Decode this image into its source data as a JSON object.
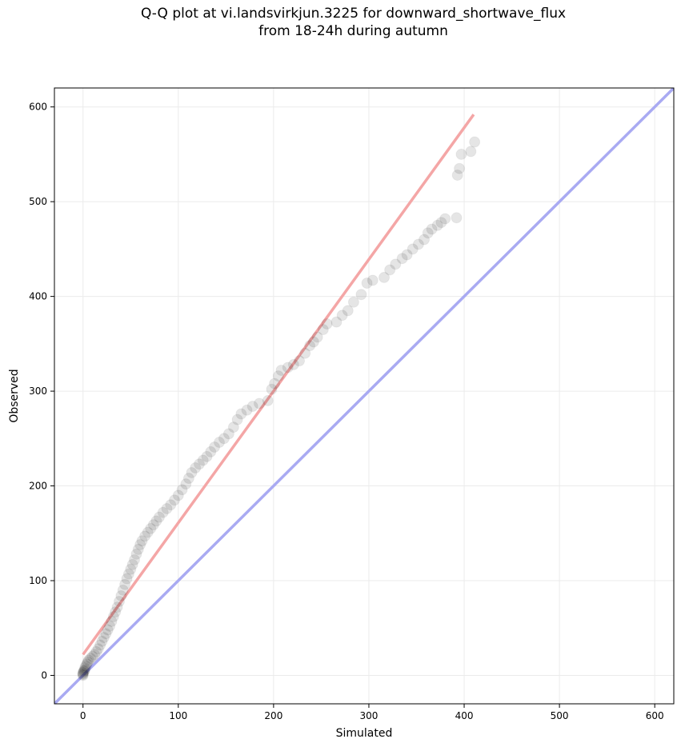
{
  "chart_data": {
    "type": "scatter",
    "title_line1": "Q-Q plot at vi.landsvirkjun.3225 for downward_shortwave_flux",
    "title_line2": "from 18-24h during autumn",
    "xlabel": "Simulated",
    "ylabel": "Observed",
    "xlim": [
      -30,
      620
    ],
    "ylim": [
      -30,
      620
    ],
    "xticks": [
      0,
      100,
      200,
      300,
      400,
      500,
      600
    ],
    "yticks": [
      0,
      100,
      200,
      300,
      400,
      500,
      600
    ],
    "grid": true,
    "colors": {
      "points": "#000000",
      "fit_line": "#f4a6a6",
      "identity_line": "#a9aaf2",
      "grid": "#ebebeb"
    },
    "identity_line": {
      "from": [
        -30,
        -30
      ],
      "to": [
        620,
        620
      ]
    },
    "fit_line": {
      "from": [
        0,
        22
      ],
      "to": [
        410,
        592
      ]
    },
    "points": [
      [
        0,
        0
      ],
      [
        0,
        1
      ],
      [
        0,
        2
      ],
      [
        0,
        3
      ],
      [
        1,
        4
      ],
      [
        1,
        5
      ],
      [
        2,
        6
      ],
      [
        2,
        8
      ],
      [
        3,
        10
      ],
      [
        4,
        12
      ],
      [
        5,
        14
      ],
      [
        6,
        16
      ],
      [
        8,
        18
      ],
      [
        10,
        20
      ],
      [
        12,
        22
      ],
      [
        14,
        25
      ],
      [
        16,
        28
      ],
      [
        18,
        32
      ],
      [
        20,
        36
      ],
      [
        22,
        40
      ],
      [
        24,
        44
      ],
      [
        26,
        48
      ],
      [
        28,
        52
      ],
      [
        30,
        57
      ],
      [
        32,
        62
      ],
      [
        34,
        67
      ],
      [
        36,
        72
      ],
      [
        38,
        78
      ],
      [
        40,
        84
      ],
      [
        42,
        90
      ],
      [
        44,
        96
      ],
      [
        46,
        102
      ],
      [
        48,
        107
      ],
      [
        50,
        112
      ],
      [
        52,
        117
      ],
      [
        54,
        122
      ],
      [
        56,
        128
      ],
      [
        58,
        133
      ],
      [
        60,
        138
      ],
      [
        62,
        142
      ],
      [
        65,
        147
      ],
      [
        68,
        151
      ],
      [
        71,
        155
      ],
      [
        74,
        159
      ],
      [
        77,
        163
      ],
      [
        80,
        167
      ],
      [
        84,
        172
      ],
      [
        88,
        176
      ],
      [
        92,
        180
      ],
      [
        96,
        185
      ],
      [
        100,
        190
      ],
      [
        104,
        196
      ],
      [
        108,
        202
      ],
      [
        111,
        208
      ],
      [
        114,
        214
      ],
      [
        118,
        219
      ],
      [
        122,
        223
      ],
      [
        126,
        227
      ],
      [
        130,
        231
      ],
      [
        134,
        236
      ],
      [
        138,
        241
      ],
      [
        143,
        246
      ],
      [
        148,
        250
      ],
      [
        153,
        255
      ],
      [
        158,
        262
      ],
      [
        162,
        270
      ],
      [
        166,
        276
      ],
      [
        172,
        280
      ],
      [
        178,
        284
      ],
      [
        185,
        287
      ],
      [
        194,
        290
      ],
      [
        198,
        302
      ],
      [
        201,
        308
      ],
      [
        205,
        316
      ],
      [
        208,
        322
      ],
      [
        215,
        325
      ],
      [
        221,
        328
      ],
      [
        227,
        332
      ],
      [
        233,
        340
      ],
      [
        238,
        348
      ],
      [
        242,
        352
      ],
      [
        246,
        357
      ],
      [
        252,
        365
      ],
      [
        256,
        371
      ],
      [
        266,
        373
      ],
      [
        272,
        380
      ],
      [
        278,
        385
      ],
      [
        284,
        394
      ],
      [
        292,
        402
      ],
      [
        298,
        414
      ],
      [
        304,
        417
      ],
      [
        316,
        420
      ],
      [
        322,
        428
      ],
      [
        328,
        434
      ],
      [
        335,
        440
      ],
      [
        340,
        444
      ],
      [
        346,
        450
      ],
      [
        352,
        455
      ],
      [
        358,
        460
      ],
      [
        362,
        467
      ],
      [
        366,
        471
      ],
      [
        372,
        475
      ],
      [
        376,
        478
      ],
      [
        380,
        482
      ],
      [
        392,
        483
      ],
      [
        393,
        528
      ],
      [
        395,
        535
      ],
      [
        397,
        550
      ],
      [
        407,
        553
      ],
      [
        411,
        563
      ]
    ]
  }
}
